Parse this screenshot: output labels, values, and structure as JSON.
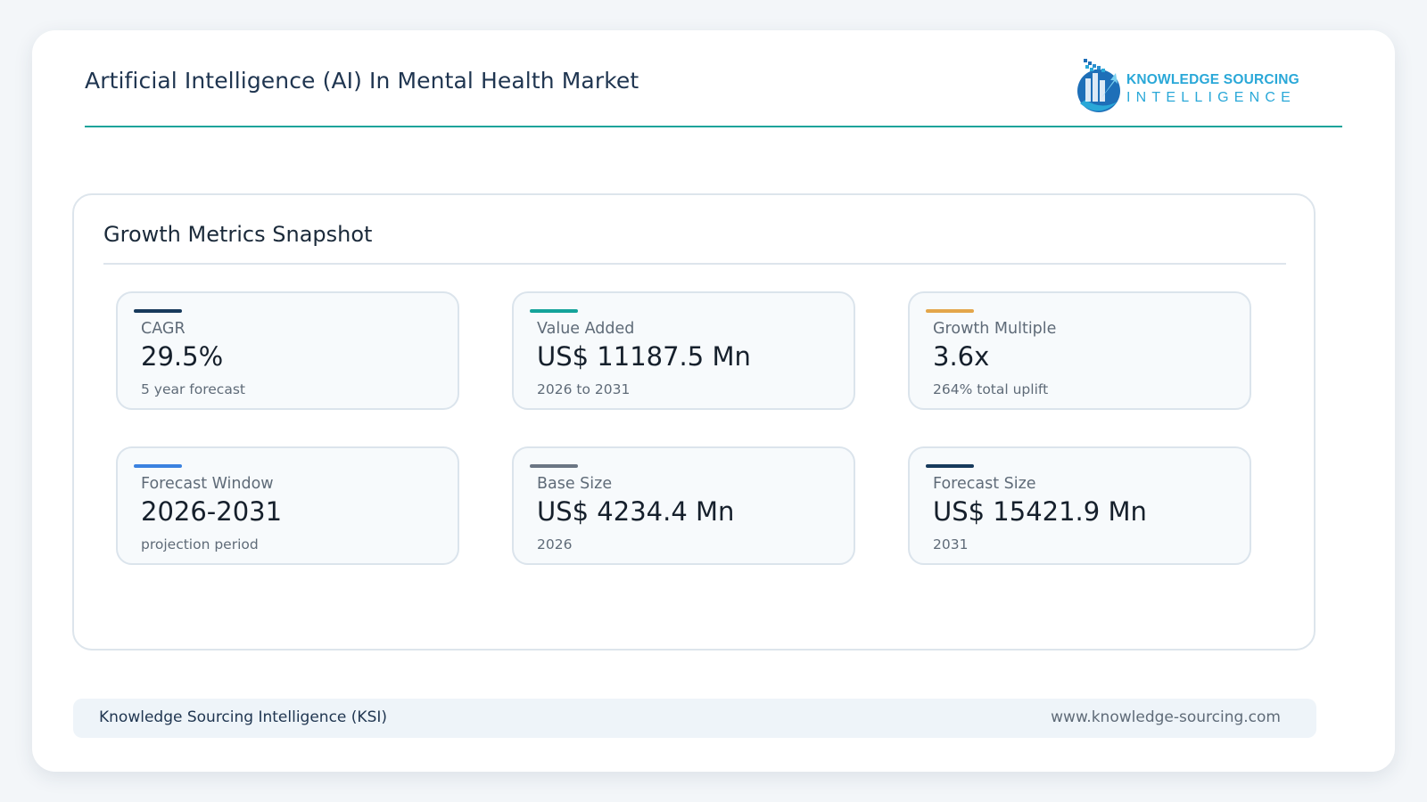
{
  "header": {
    "title": "Artificial Intelligence (AI) In Mental Health Market",
    "logo": {
      "line1": "KNOWLEDGE SOURCING",
      "line2": "INTELLIGENCE",
      "icon": "ksi-logo-icon"
    }
  },
  "panel": {
    "title": "Growth Metrics Snapshot",
    "cards": [
      {
        "label": "CAGR",
        "value": "29.5%",
        "sub": "5 year forecast",
        "accent": "#173a5c"
      },
      {
        "label": "Value Added",
        "value": "US$ 11187.5 Mn",
        "sub": "2026 to 2031",
        "accent": "#14a39a"
      },
      {
        "label": "Growth Multiple",
        "value": "3.6x",
        "sub": "264% total uplift",
        "accent": "#e3a64a"
      },
      {
        "label": "Forecast Window",
        "value": "2026-2031",
        "sub": "projection period",
        "accent": "#3b82e0"
      },
      {
        "label": "Base Size",
        "value": "US$ 4234.4 Mn",
        "sub": "2026",
        "accent": "#6b7684"
      },
      {
        "label": "Forecast Size",
        "value": "US$ 15421.9 Mn",
        "sub": "2031",
        "accent": "#173a5c"
      }
    ]
  },
  "footer": {
    "left": "Knowledge Sourcing Intelligence (KSI)",
    "right": "www.knowledge-sourcing.com"
  },
  "colors": {
    "brand_teal": "#1aa39a",
    "brand_blue": "#2aa8d8",
    "navy": "#1f3550"
  }
}
